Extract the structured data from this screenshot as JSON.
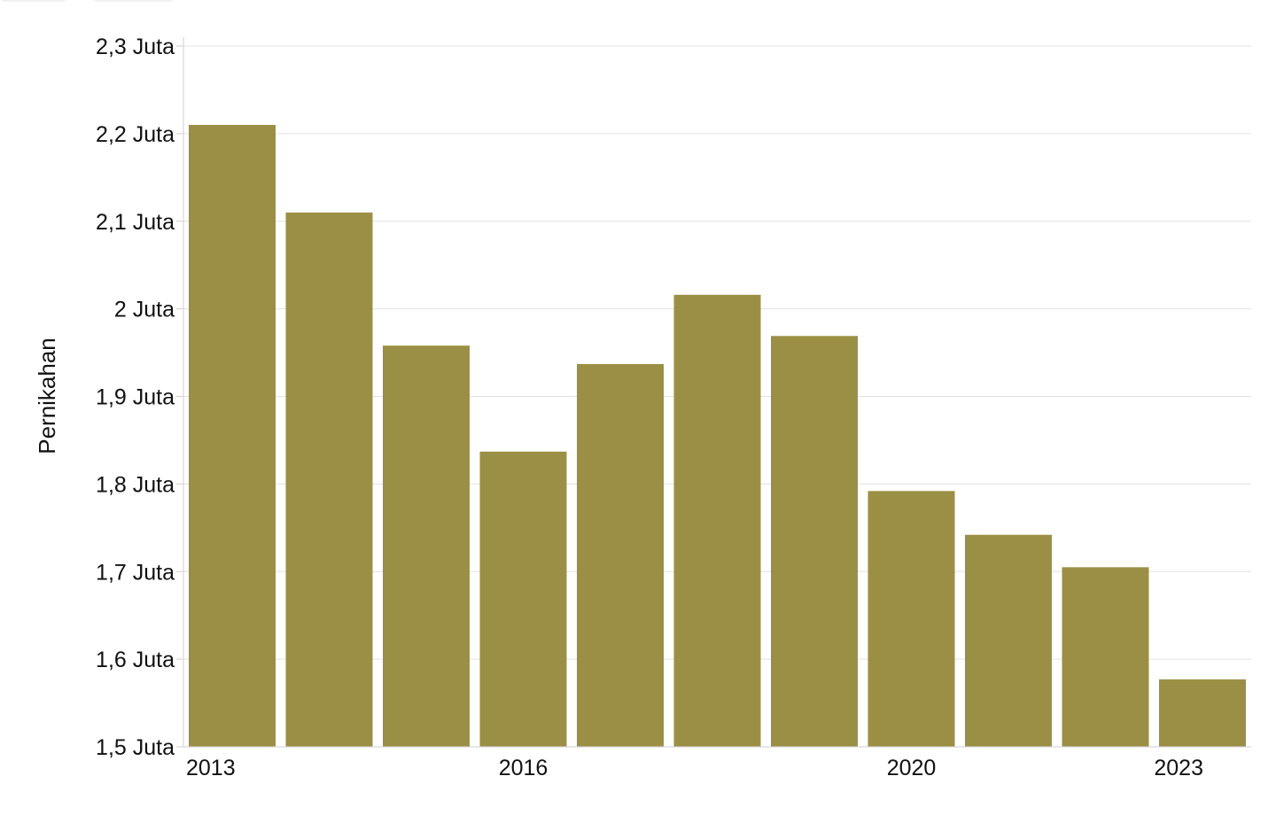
{
  "chart_data": {
    "type": "bar",
    "title": "",
    "xlabel": "",
    "ylabel": "Pernikahan",
    "bar_color": "#9b8f45",
    "grid": true,
    "legend": "none",
    "x": [
      2013,
      2014,
      2015,
      2016,
      2017,
      2018,
      2019,
      2020,
      2021,
      2022,
      2023
    ],
    "values": [
      2210000,
      2110000,
      1958000,
      1837000,
      1937000,
      2016000,
      1969000,
      1792000,
      1742000,
      1705000,
      1577000
    ],
    "ylim": [
      1500000,
      2300000
    ],
    "y_ticks": [
      {
        "value": 1500000,
        "label": "1,5 Juta"
      },
      {
        "value": 1600000,
        "label": "1,6 Juta"
      },
      {
        "value": 1700000,
        "label": "1,7 Juta"
      },
      {
        "value": 1800000,
        "label": "1,8 Juta"
      },
      {
        "value": 1900000,
        "label": "1,9 Juta"
      },
      {
        "value": 2000000,
        "label": "2 Juta"
      },
      {
        "value": 2100000,
        "label": "2,1 Juta"
      },
      {
        "value": 2200000,
        "label": "2,2 Juta"
      },
      {
        "value": 2300000,
        "label": "2,3 Juta"
      }
    ],
    "x_ticks": [
      {
        "value": 2013,
        "label": "2013"
      },
      {
        "value": 2016,
        "label": "2016"
      },
      {
        "value": 2020,
        "label": "2020"
      },
      {
        "value": 2023,
        "label": "2023"
      }
    ]
  }
}
